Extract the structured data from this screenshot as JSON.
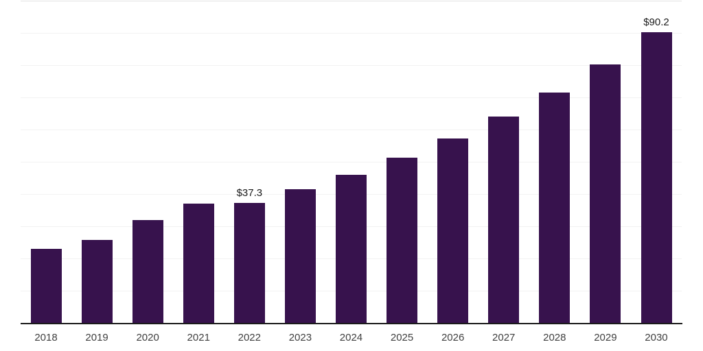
{
  "chart_data": {
    "type": "bar",
    "title": "",
    "xlabel": "",
    "ylabel": "",
    "categories": [
      "2018",
      "2019",
      "2020",
      "2021",
      "2022",
      "2023",
      "2024",
      "2025",
      "2026",
      "2027",
      "2028",
      "2029",
      "2030"
    ],
    "values": [
      23,
      25.7,
      32,
      37,
      37.3,
      41.4,
      46,
      51.3,
      57.2,
      64,
      71.4,
      80.2,
      90.2
    ],
    "data_labels": {
      "2022": "$37.3",
      "2030": "$90.2"
    },
    "value_prefix": "$",
    "ylim": [
      0,
      100
    ],
    "gridline_step": 10,
    "grid": "horizontal",
    "legend_position": "none",
    "colors": {
      "bar": "#37124d",
      "axis_line": "#1a1a1a",
      "gridline": "#f2f2f2",
      "top_gridline": "#e2e2e2",
      "tick_label": "#404040",
      "value_label": "#1a1a1a",
      "background": "#ffffff"
    }
  }
}
